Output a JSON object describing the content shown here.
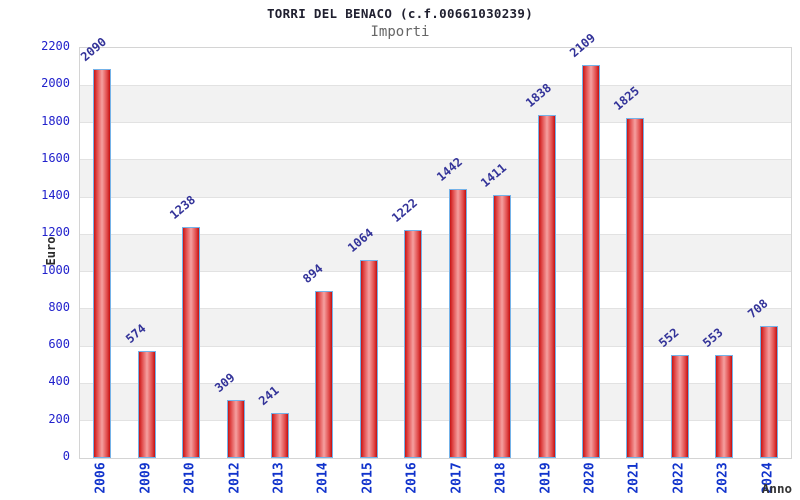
{
  "page": {
    "title": "TORRI DEL BENACO (c.f.00661030239)",
    "subtitle": "Importi"
  },
  "chart_data": {
    "type": "bar",
    "title": "TORRI DEL BENACO (c.f.00661030239)",
    "subtitle": "Importi",
    "xlabel": "Anno",
    "ylabel": "Euro",
    "categories": [
      "2006",
      "2009",
      "2010",
      "2012",
      "2013",
      "2014",
      "2015",
      "2016",
      "2017",
      "2018",
      "2019",
      "2020",
      "2021",
      "2022",
      "2023",
      "2024"
    ],
    "values": [
      2090,
      574,
      1238,
      309,
      241,
      894,
      1064,
      1222,
      1442,
      1411,
      1838,
      2109,
      1825,
      552,
      553,
      708
    ],
    "ylim": [
      0,
      2200
    ],
    "ytick_step": 200,
    "yticks": [
      0,
      200,
      400,
      600,
      800,
      1000,
      1200,
      1400,
      1600,
      1800,
      2000,
      2200
    ],
    "grid": "alternating-horizontal-bands",
    "legend": "none",
    "colors": {
      "bar_dark": "#c81414",
      "bar_light": "#f5a0a0",
      "bar_border": "#74b2e8",
      "value_label": "#333399",
      "ytick_label": "#2222cc",
      "xtick_label": "#1133cc",
      "band_gray": "#f2f2f2",
      "band_white": "#ffffff",
      "plot_border": "#d4d4d4",
      "title_color": "#202030",
      "subtitle_color": "#666666"
    }
  }
}
